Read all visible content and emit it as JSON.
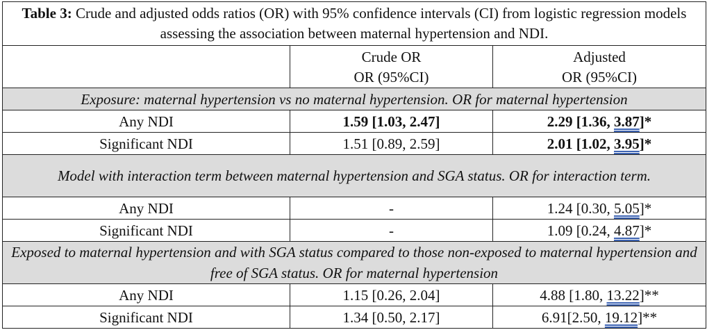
{
  "caption": {
    "title": "Table 3:",
    "text": " Crude and adjusted odds ratios (OR) with 95% confidence intervals (CI) from logistic regression models assessing the association between maternal hypertension and NDI."
  },
  "header": {
    "crude_line1": "Crude OR",
    "crude_line2": "OR (95%CI)",
    "adjusted_line1": "Adjusted",
    "adjusted_line2": "OR (95%CI)"
  },
  "sections": [
    {
      "title": "Exposure: maternal hypertension vs no maternal hypertension. OR for maternal hypertension",
      "rows": [
        {
          "label": "Any NDI",
          "crude": "1.59 [1.03, 2.47]",
          "adjusted_pre": "2.29 [1.36, ",
          "adjusted_ul": "3.87",
          "adjusted_post": "]*"
        },
        {
          "label": "Significant NDI",
          "crude": "1.51 [0.89, 2.59]",
          "adjusted_pre": "2.01 [1.02, ",
          "adjusted_ul": "3.95",
          "adjusted_post": "]*"
        }
      ]
    },
    {
      "title": "Model with interaction term between maternal hypertension and SGA status. OR for interaction term.",
      "rows": [
        {
          "label": "Any NDI",
          "crude": "-",
          "adjusted_pre": "1.24 [0.30, ",
          "adjusted_ul": "5.05",
          "adjusted_post": "]*"
        },
        {
          "label": "Significant NDI",
          "crude": "-",
          "adjusted_pre": "1.09 [0.24, ",
          "adjusted_ul": "4.87",
          "adjusted_post": "]*"
        }
      ]
    },
    {
      "title": "Exposed to maternal hypertension and with SGA status compared to those non-exposed to maternal hypertension and free of SGA status. OR for maternal hypertension",
      "rows": [
        {
          "label": "Any NDI",
          "crude": "1.15 [0.26, 2.04]",
          "adjusted_pre": "4.88 [1.80, ",
          "adjusted_ul": "13.22",
          "adjusted_post": "]**"
        },
        {
          "label": "Significant NDI",
          "crude": "1.34 [0.50, 2.17]",
          "adjusted_pre": "6.91[2.50, ",
          "adjusted_ul": "19.12",
          "adjusted_post": "]**"
        }
      ]
    }
  ]
}
